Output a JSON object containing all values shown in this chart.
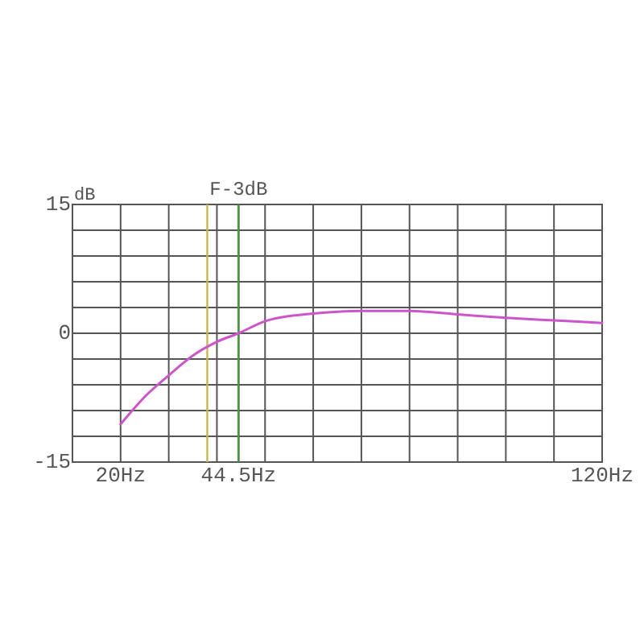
{
  "chart_data": {
    "type": "line",
    "ylabel": "dB",
    "x": [
      20,
      25,
      30,
      35,
      40,
      44.5,
      50,
      55,
      60,
      65,
      70,
      80,
      90,
      100,
      110,
      120
    ],
    "series": [
      {
        "color": "#cc55cc",
        "values": [
          -10.6,
          -7.4,
          -4.9,
          -2.6,
          -1.0,
          0,
          1.4,
          2.0,
          2.3,
          2.5,
          2.6,
          2.6,
          2.2,
          1.8,
          1.5,
          1.2
        ]
      }
    ],
    "xlim": [
      10,
      120
    ],
    "xticks": [
      {
        "value": 10,
        "label": null
      },
      {
        "value": 20,
        "label": "20Hz"
      },
      {
        "value": 30,
        "label": null
      },
      {
        "value": 40,
        "label": null
      },
      {
        "value": 44.5,
        "label": "44.5Hz"
      },
      {
        "value": 50,
        "label": null
      },
      {
        "value": 60,
        "label": null
      },
      {
        "value": 70,
        "label": null
      },
      {
        "value": 80,
        "label": null
      },
      {
        "value": 90,
        "label": null
      },
      {
        "value": 100,
        "label": null
      },
      {
        "value": 110,
        "label": null
      },
      {
        "value": 120,
        "label": "120Hz"
      }
    ],
    "ylim": [
      -15,
      15
    ],
    "yticks": [
      -15,
      {
        "value": -12,
        "label": null
      },
      {
        "value": -9,
        "label": null
      },
      {
        "value": -6,
        "label": null
      },
      {
        "value": -3,
        "label": null
      },
      0,
      {
        "value": 3,
        "label": null
      },
      {
        "value": 6,
        "label": null
      },
      {
        "value": 9,
        "label": null
      },
      {
        "value": 12,
        "label": null
      },
      15
    ],
    "grid": true,
    "ref_lines": [
      {
        "axis": "x",
        "value": 38,
        "color": "#c8b848"
      },
      {
        "axis": "x",
        "value": 44.5,
        "label": "F-3dB",
        "color": "#3c9a3c"
      }
    ]
  }
}
